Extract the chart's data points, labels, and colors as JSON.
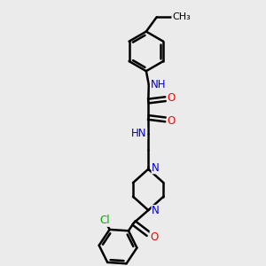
{
  "background_color": "#ebebeb",
  "atom_color_N": "#0000cc",
  "atom_color_O": "#ff0000",
  "atom_color_Cl": "#00aa00",
  "bond_color": "#000000",
  "bond_width": 1.8,
  "font_size_atoms": 8.5,
  "fig_width": 3.0,
  "fig_height": 3.0,
  "dpi": 100,
  "xlim": [
    0,
    10
  ],
  "ylim": [
    0,
    10
  ]
}
